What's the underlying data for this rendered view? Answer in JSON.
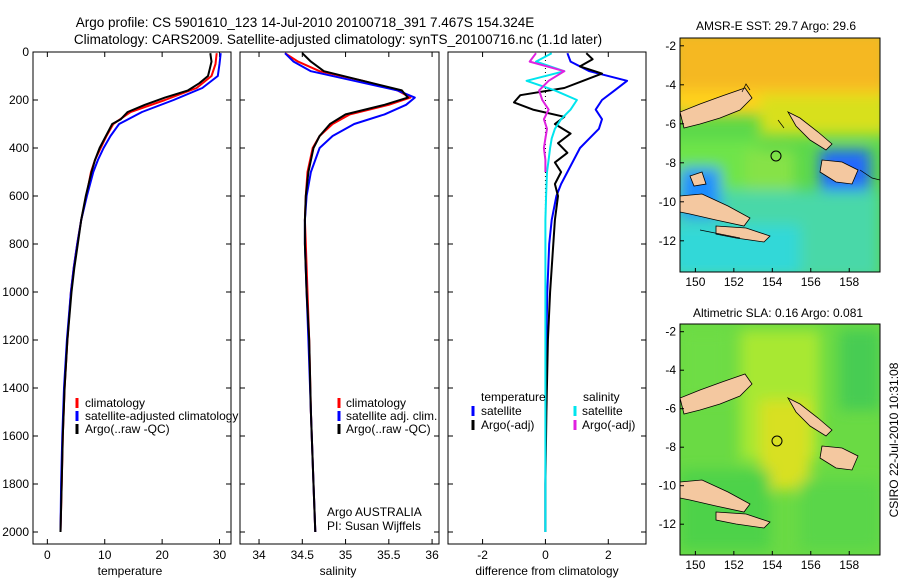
{
  "title": {
    "line1": "Argo profile: CS 5901610_123 14-Jul-2010 20100718_391 7.467S 154.324E",
    "line2": "Climatology: CARS2009. Satellite-adjusted climatology: synTS_20100716.nc (1.1d later)"
  },
  "footer_stamp": "CSIRO 22-Jul-2010 10:31:08",
  "float_info": {
    "line1": "Argo AUSTRALIA",
    "line2": "PI: Susan Wijffels"
  },
  "colors": {
    "climatology": "#ff0000",
    "satellite": "#0000ff",
    "argo": "#000000",
    "cyan": "#00e5ee",
    "magenta": "#e020e0"
  },
  "chart_data": [
    {
      "type": "line",
      "panel": "temperature",
      "xlabel": "temperature",
      "xlim": [
        -2.5,
        32
      ],
      "ylim": [
        2050,
        0
      ],
      "xticks": [
        "0",
        "10",
        "20",
        "30"
      ],
      "yticks": [
        "0",
        "200",
        "400",
        "600",
        "800",
        "1000",
        "1200",
        "1400",
        "1600",
        "1800",
        "2000"
      ],
      "legend_placement": "lower-left",
      "series": [
        {
          "name": "climatology",
          "color": "#ff0000",
          "depth": [
            5,
            50,
            100,
            150,
            200,
            250,
            300,
            350,
            400,
            450,
            500,
            600,
            700,
            800,
            900,
            1000,
            1200,
            1400,
            1600,
            1800,
            2000
          ],
          "values": [
            29.5,
            29.3,
            28.6,
            26.0,
            20.5,
            14.5,
            11.5,
            10.3,
            9.3,
            8.3,
            7.6,
            6.8,
            5.9,
            5.2,
            4.6,
            4.1,
            3.5,
            3.0,
            2.7,
            2.5,
            2.3
          ]
        },
        {
          "name": "satellite-adjusted climatology",
          "color": "#0000ff",
          "depth": [
            5,
            50,
            100,
            150,
            200,
            250,
            300,
            350,
            400,
            450,
            500,
            600,
            700,
            800,
            900,
            1000,
            1200,
            1400,
            1600,
            1800,
            2000
          ],
          "values": [
            30.2,
            30.0,
            29.7,
            27.0,
            22.0,
            16.5,
            12.5,
            11.0,
            9.8,
            8.8,
            8.0,
            6.9,
            5.9,
            5.2,
            4.6,
            4.1,
            3.4,
            2.9,
            2.6,
            2.4,
            2.3
          ]
        },
        {
          "name": "Argo(..raw -QC)",
          "color": "#000000",
          "depth": [
            5,
            40,
            70,
            100,
            130,
            160,
            190,
            220,
            250,
            280,
            300,
            350,
            400,
            450,
            500,
            600,
            700,
            800,
            900,
            1000,
            1200,
            1400,
            1600,
            1800,
            2000
          ],
          "values": [
            28.4,
            28.6,
            28.3,
            28.0,
            26.5,
            24.5,
            20.5,
            17.0,
            14.0,
            12.8,
            11.3,
            10.2,
            9.1,
            8.3,
            7.7,
            6.7,
            5.9,
            5.3,
            4.7,
            4.2,
            3.5,
            3.0,
            2.7,
            2.5,
            2.3
          ]
        }
      ],
      "legend": [
        "climatology",
        "satellite-adjusted climatology",
        "Argo(..raw -QC)"
      ]
    },
    {
      "type": "line",
      "panel": "salinity",
      "xlabel": "salinity",
      "xlim": [
        33.78,
        36.08
      ],
      "ylim": [
        2050,
        0
      ],
      "xticks": [
        "34",
        "34.5",
        "35",
        "35.5",
        "36"
      ],
      "legend_placement": "lower-right",
      "series": [
        {
          "name": "climatology",
          "color": "#ff0000",
          "depth": [
            5,
            40,
            80,
            120,
            160,
            190,
            220,
            260,
            300,
            350,
            400,
            500,
            600,
            700,
            800,
            1000,
            1200,
            1500,
            1800,
            2000
          ],
          "values": [
            34.3,
            34.45,
            34.7,
            35.2,
            35.6,
            35.75,
            35.5,
            35.05,
            34.85,
            34.7,
            34.62,
            34.56,
            34.54,
            34.53,
            34.54,
            34.56,
            34.58,
            34.6,
            34.63,
            34.65
          ]
        },
        {
          "name": "satellite adj. clim.",
          "color": "#0000ff",
          "depth": [
            5,
            40,
            80,
            120,
            160,
            190,
            220,
            260,
            300,
            350,
            400,
            500,
            600,
            700,
            800,
            1000,
            1200,
            1500,
            1800,
            2000
          ],
          "values": [
            34.3,
            34.4,
            34.6,
            35.1,
            35.6,
            35.8,
            35.7,
            35.45,
            35.1,
            34.85,
            34.7,
            34.6,
            34.55,
            34.53,
            34.53,
            34.55,
            34.57,
            34.6,
            34.63,
            34.65
          ]
        },
        {
          "name": "Argo(..raw -QC)",
          "color": "#000000",
          "depth": [
            5,
            40,
            80,
            120,
            160,
            190,
            220,
            260,
            300,
            350,
            400,
            500,
            600,
            700,
            800,
            1000,
            1200,
            1500,
            1800,
            2000
          ],
          "values": [
            34.5,
            34.6,
            34.75,
            35.2,
            35.65,
            35.72,
            35.45,
            35.0,
            34.82,
            34.7,
            34.63,
            34.57,
            34.54,
            34.53,
            34.53,
            34.55,
            34.58,
            34.6,
            34.63,
            34.65
          ]
        }
      ],
      "legend": [
        "climatology",
        "satellite adj. clim.",
        "Argo(..raw -QC)"
      ]
    },
    {
      "type": "line",
      "panel": "difference",
      "xlabel": "difference from climatology",
      "xlim": [
        -3.1,
        3.2
      ],
      "ylim": [
        2050,
        0
      ],
      "xticks": [
        "-2",
        "0",
        "2"
      ],
      "legend_placement": "lower-center",
      "legend_headers": [
        "temperature",
        "salinity"
      ],
      "series": [
        {
          "name": "satellite",
          "group": "temperature",
          "color": "#0000ff",
          "depth": [
            5,
            40,
            80,
            120,
            160,
            200,
            240,
            280,
            320,
            360,
            400,
            450,
            500,
            550,
            600,
            700,
            800,
            1000,
            1200,
            1500,
            1800,
            2000
          ],
          "values": [
            0.7,
            0.8,
            1.4,
            2.6,
            2.2,
            1.8,
            1.6,
            1.8,
            1.7,
            1.4,
            1.1,
            0.9,
            0.7,
            0.5,
            0.35,
            0.2,
            0.12,
            0.06,
            0.03,
            0.01,
            0.0,
            0.0
          ]
        },
        {
          "name": "Argo(-adj)",
          "group": "temperature",
          "color": "#000000",
          "depth": [
            5,
            30,
            60,
            90,
            120,
            150,
            180,
            210,
            240,
            270,
            300,
            340,
            380,
            420,
            460,
            500,
            550,
            600,
            700,
            800,
            900,
            1000,
            1200,
            1500,
            1800,
            2000
          ],
          "values": [
            1.3,
            1.5,
            1.1,
            1.8,
            1.2,
            0.6,
            -0.8,
            -1.0,
            -0.4,
            0.6,
            0.3,
            0.8,
            0.4,
            0.7,
            0.3,
            0.5,
            0.3,
            0.4,
            0.3,
            0.25,
            0.2,
            0.15,
            0.08,
            0.03,
            0.0,
            0.0
          ]
        },
        {
          "name": "satellite",
          "group": "salinity",
          "color": "#00e5ee",
          "depth": [
            5,
            40,
            80,
            120,
            160,
            200,
            240,
            280,
            320,
            360,
            400,
            450,
            500,
            600,
            700,
            800,
            1000,
            1200,
            1500,
            1800,
            2000
          ],
          "values": [
            0.2,
            -0.3,
            0.6,
            -0.6,
            0.3,
            1.0,
            0.8,
            0.5,
            0.3,
            0.2,
            0.15,
            0.1,
            0.05,
            0.02,
            0.0,
            0.0,
            0.0,
            0.0,
            0.0,
            0.0,
            0.0
          ]
        },
        {
          "name": "Argo(-adj)",
          "group": "salinity",
          "color": "#e020e0",
          "depth": [
            5,
            40,
            80,
            120,
            160,
            200,
            240,
            280,
            320,
            360,
            400,
            450,
            500
          ],
          "values": [
            -0.3,
            -0.5,
            0.6,
            0.1,
            -0.2,
            -0.1,
            0.1,
            -0.05,
            0.05,
            0.0,
            -0.05,
            0.0,
            0.0
          ]
        }
      ],
      "legend": [
        "satellite",
        "Argo(-adj)",
        "satellite",
        "Argo(-adj)"
      ]
    },
    {
      "type": "heatmap",
      "panel": "sst_map",
      "title": "AMSR-E SST: 29.7 Argo: 29.6",
      "xlim": [
        149.2,
        159.6
      ],
      "ylim": [
        -13.6,
        -1.6
      ],
      "xticks": [
        "150",
        "152",
        "154",
        "156",
        "158"
      ],
      "yticks": [
        "-2",
        "-4",
        "-6",
        "-8",
        "-10",
        "-12"
      ],
      "float_position": {
        "lon": 154.324,
        "lat": -7.467
      }
    },
    {
      "type": "heatmap",
      "panel": "sla_map",
      "title": "Altimetric SLA: 0.16 Argo: 0.081",
      "xlim": [
        149.2,
        159.6
      ],
      "ylim": [
        -13.6,
        -1.6
      ],
      "xticks": [
        "150",
        "152",
        "154",
        "156",
        "158"
      ],
      "yticks": [
        "-2",
        "-4",
        "-6",
        "-8",
        "-10",
        "-12"
      ],
      "float_position": {
        "lon": 154.324,
        "lat": -7.467
      }
    }
  ]
}
